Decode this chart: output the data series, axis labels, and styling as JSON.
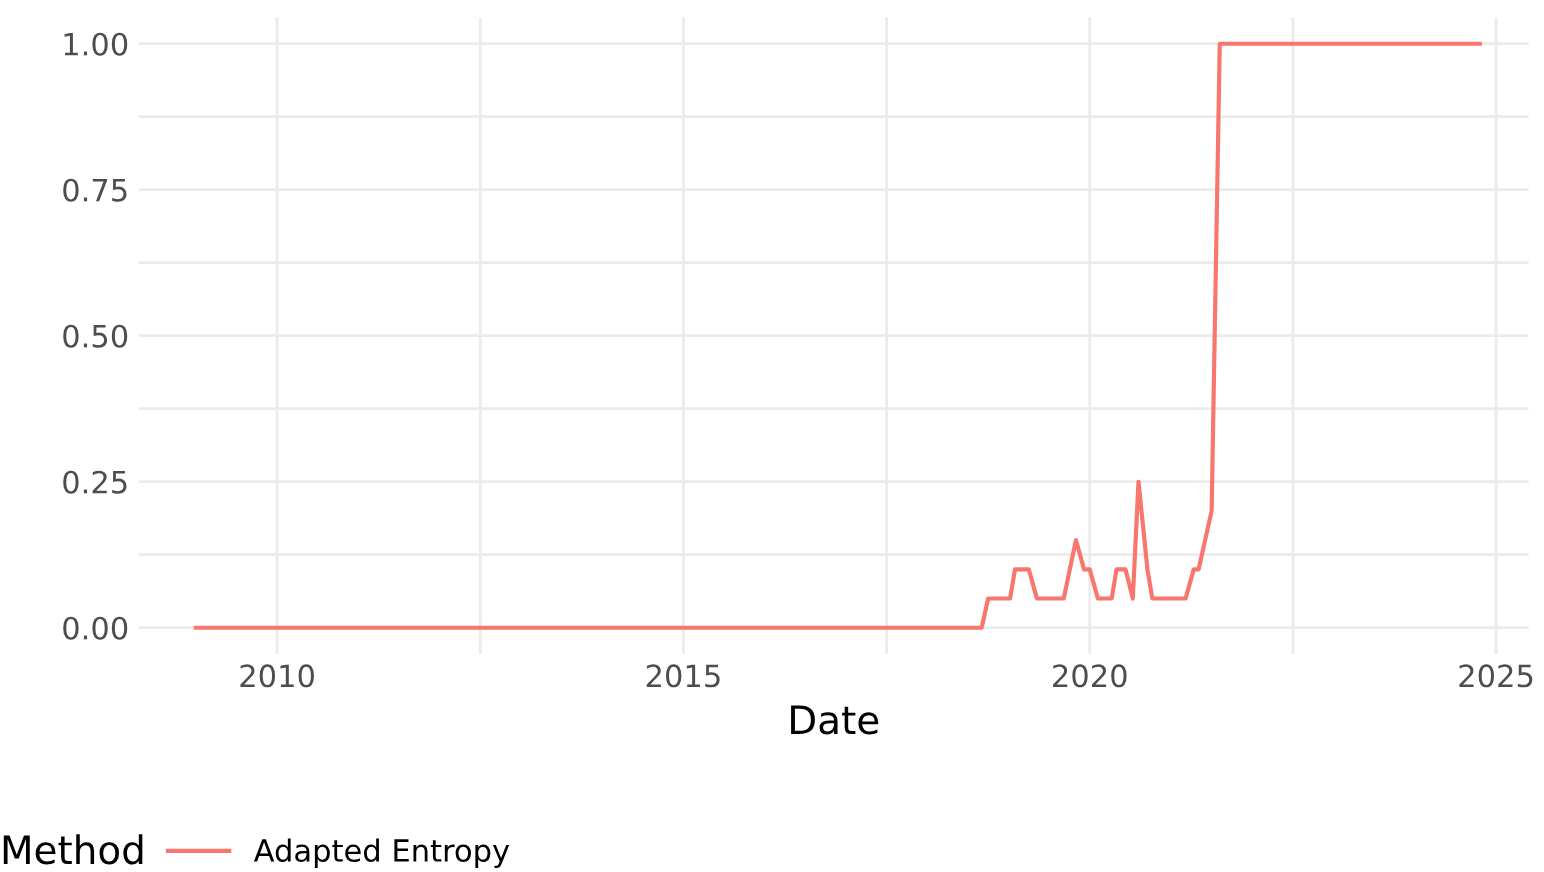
{
  "chart_data": {
    "type": "line",
    "xlabel": "Date",
    "ylabel": null,
    "legend_title": "Method",
    "series": [
      {
        "name": "Adapted Entropy",
        "color": "#f8766d",
        "x": [
          2009.0,
          2018.67,
          2018.75,
          2019.02,
          2019.08,
          2019.25,
          2019.35,
          2019.68,
          2019.83,
          2019.93,
          2020.0,
          2020.1,
          2020.27,
          2020.33,
          2020.44,
          2020.53,
          2020.6,
          2020.71,
          2020.77,
          2021.18,
          2021.28,
          2021.34,
          2021.42,
          2021.5,
          2021.6,
          2024.8
        ],
        "values": [
          0,
          0,
          0.05,
          0.05,
          0.1,
          0.1,
          0.05,
          0.05,
          0.15,
          0.1,
          0.1,
          0.05,
          0.05,
          0.1,
          0.1,
          0.05,
          0.25,
          0.1,
          0.05,
          0.05,
          0.1,
          0.1,
          0.15,
          0.2,
          1.0,
          1.0
        ]
      }
    ],
    "xlim": [
      2008.3,
      2025.4
    ],
    "xticks": [
      2010,
      {
        "value": 2012.5,
        "label": null
      },
      2015,
      {
        "value": 2017.5,
        "label": null
      },
      2020,
      {
        "value": 2022.5,
        "label": null
      },
      2025
    ],
    "ylim": [
      -0.045,
      1.045
    ],
    "yticks": [
      {
        "value": 0,
        "label": "0.00"
      },
      {
        "value": 0.125,
        "label": null
      },
      {
        "value": 0.25,
        "label": "0.25"
      },
      {
        "value": 0.375,
        "label": null
      },
      {
        "value": 0.5,
        "label": "0.50"
      },
      {
        "value": 0.625,
        "label": null
      },
      {
        "value": 0.75,
        "label": "0.75"
      },
      {
        "value": 0.875,
        "label": null
      },
      {
        "value": 1.0,
        "label": "1.00"
      }
    ],
    "grid": true,
    "legend": "bottom",
    "marker": "none",
    "line_style": "solid"
  }
}
